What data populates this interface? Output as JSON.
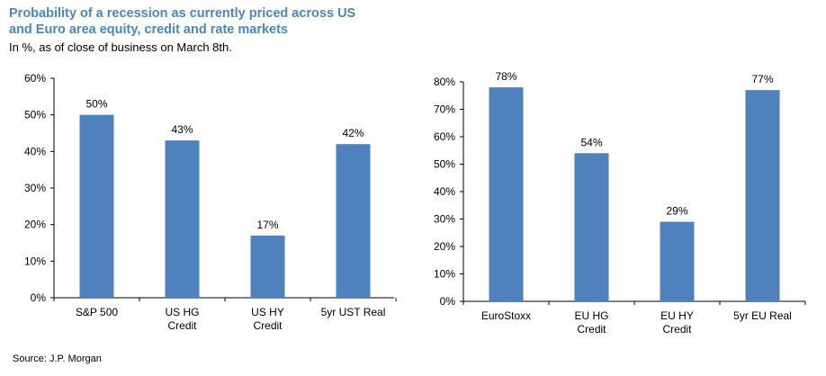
{
  "header": {
    "title_line1": "Probability of a recession as currently priced across US",
    "title_line2": "and Euro area equity, credit and rate markets",
    "subtitle": "In %, as of close of business on March 8th."
  },
  "footer": {
    "source": "Source: J.P. Morgan"
  },
  "chart_data": [
    {
      "type": "bar",
      "categories": [
        [
          "S&P 500"
        ],
        [
          "US HG",
          "Credit"
        ],
        [
          "US HY",
          "Credit"
        ],
        [
          "5yr UST Real"
        ]
      ],
      "values": [
        50,
        43,
        17,
        42
      ],
      "data_labels": [
        "50%",
        "43%",
        "17%",
        "42%"
      ],
      "ylim": [
        0,
        60
      ],
      "yticks": [
        0,
        10,
        20,
        30,
        40,
        50,
        60
      ],
      "ytick_labels": [
        "0%",
        "10%",
        "20%",
        "30%",
        "40%",
        "50%",
        "60%"
      ],
      "bar_color": "#4f81bd",
      "grid": false,
      "xlabel": "",
      "ylabel": "",
      "title": ""
    },
    {
      "type": "bar",
      "categories": [
        [
          "EuroStoxx"
        ],
        [
          "EU HG",
          "Credit"
        ],
        [
          "EU HY",
          "Credit"
        ],
        [
          "5yr EU Real"
        ]
      ],
      "values": [
        78,
        54,
        29,
        77
      ],
      "data_labels": [
        "78%",
        "54%",
        "29%",
        "77%"
      ],
      "ylim": [
        0,
        80
      ],
      "yticks": [
        0,
        10,
        20,
        30,
        40,
        50,
        60,
        70,
        80
      ],
      "ytick_labels": [
        "0%",
        "10%",
        "20%",
        "30%",
        "40%",
        "50%",
        "60%",
        "70%",
        "80%"
      ],
      "bar_color": "#4f81bd",
      "grid": false,
      "xlabel": "",
      "ylabel": "",
      "title": ""
    }
  ]
}
